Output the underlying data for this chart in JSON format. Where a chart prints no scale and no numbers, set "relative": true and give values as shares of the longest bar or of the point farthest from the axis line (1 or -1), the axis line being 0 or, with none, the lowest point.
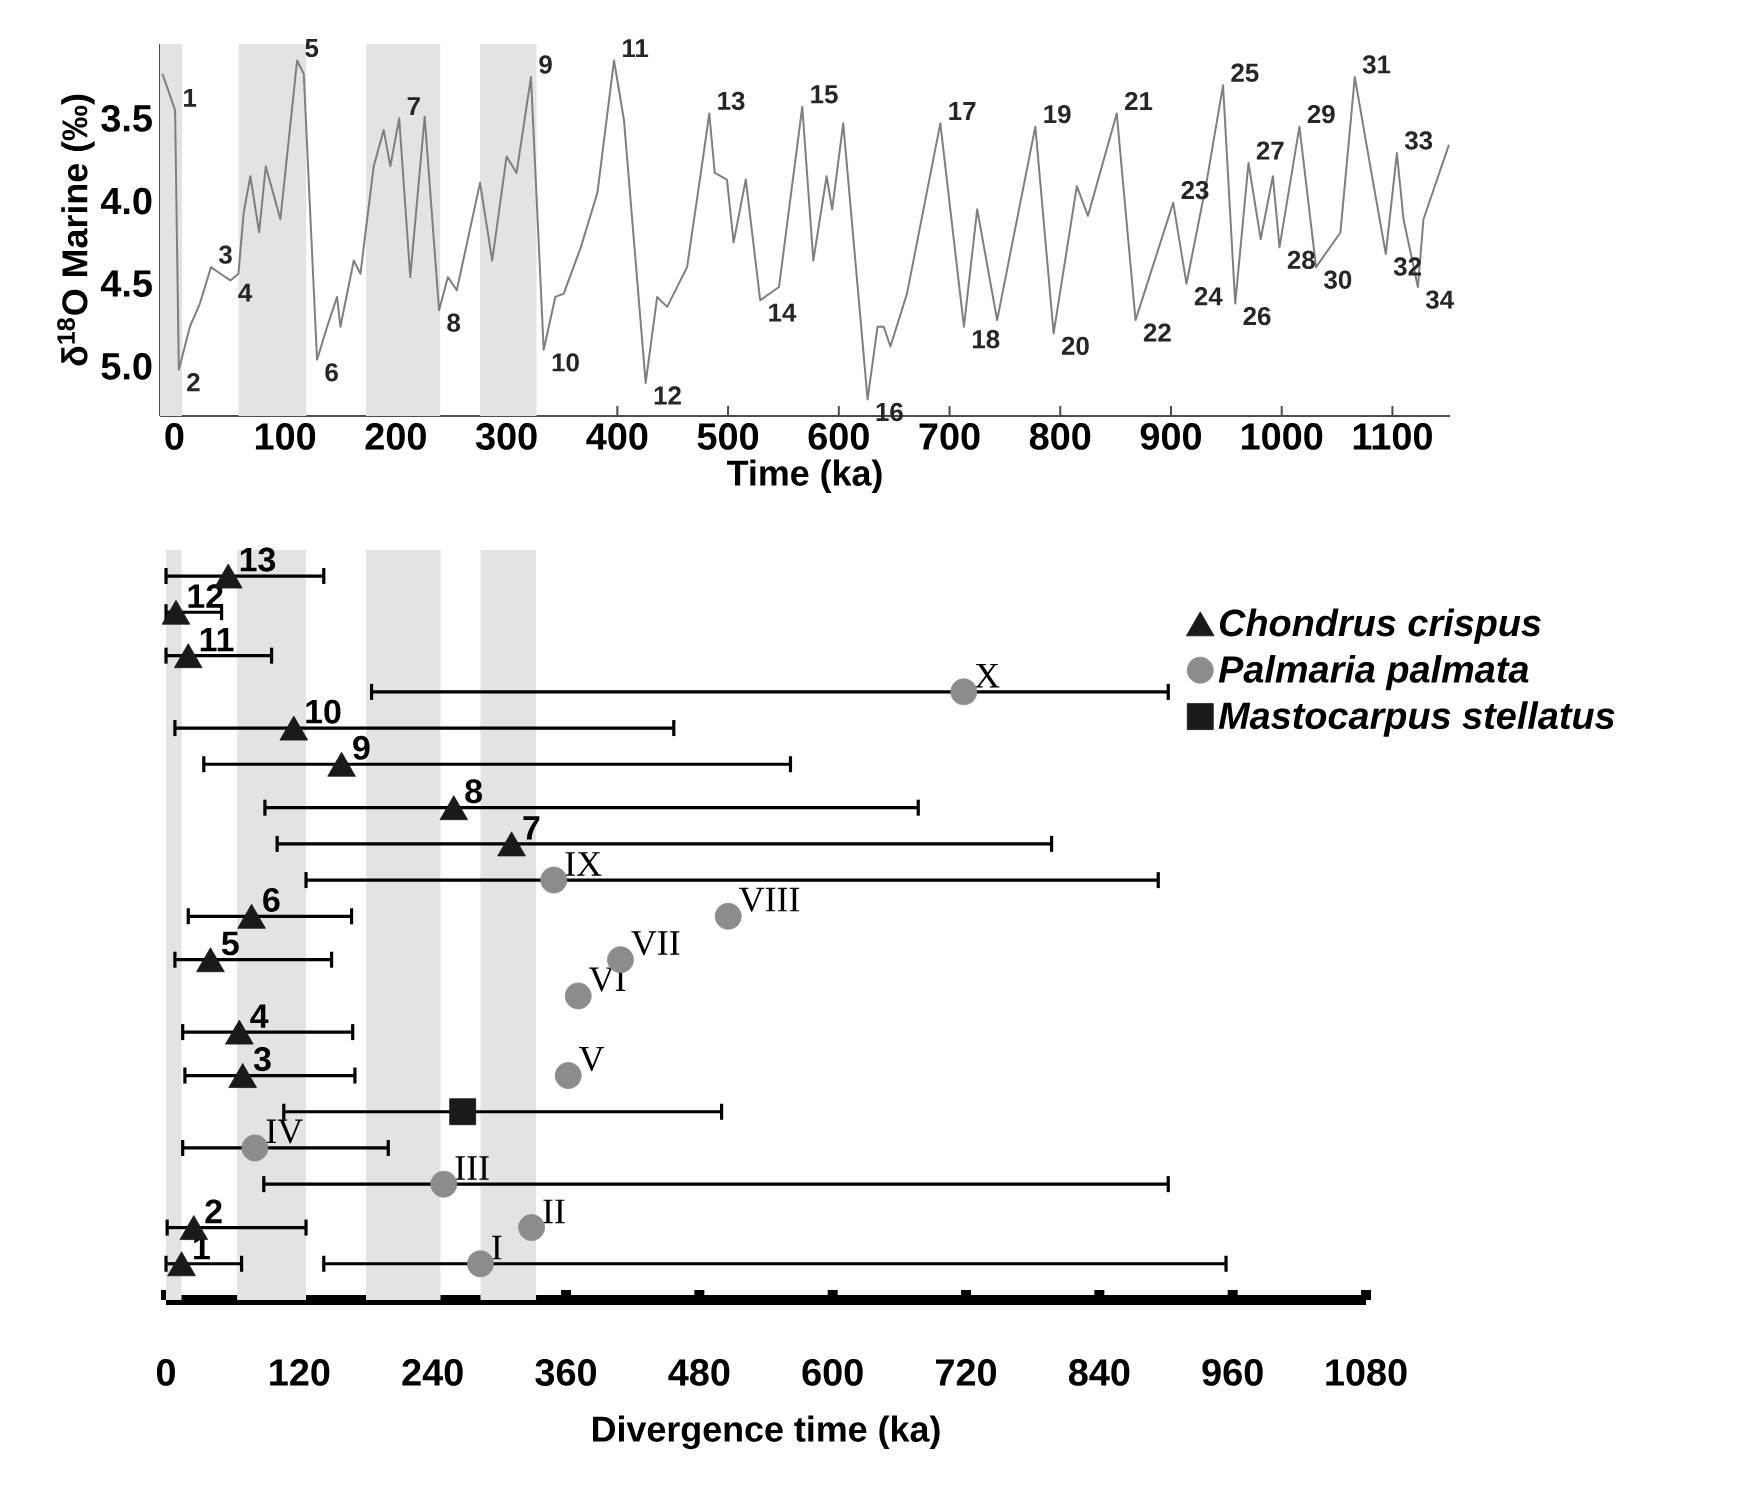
{
  "chart_data": [
    {
      "type": "line",
      "color": "#7f7f7f",
      "x": [
        -10.8,
        0.6,
        4,
        14,
        23,
        33,
        41.5,
        50.6,
        57.8,
        62.6,
        68.6,
        76.5,
        82.5,
        95.7,
        110.8,
        116.8,
        128.8,
        137.9,
        146.9,
        149.9,
        162,
        168,
        180,
        189,
        195,
        203,
        213,
        226,
        239,
        247,
        255,
        276,
        287,
        300,
        309,
        322,
        333.5,
        344,
        351.6,
        367,
        382,
        397,
        406,
        425.6,
        436,
        445,
        463,
        478,
        483,
        488,
        499,
        505,
        516,
        529,
        546,
        567,
        577,
        589,
        594,
        604,
        626,
        635,
        640.6,
        646.6,
        661.6,
        691.7,
        713,
        725,
        743,
        777.5,
        794,
        815,
        825,
        851,
        868,
        902,
        914,
        932,
        947,
        958,
        970,
        981,
        992,
        998,
        1016,
        1022,
        1031,
        1053,
        1066,
        1080,
        1094,
        1104,
        1110,
        1123,
        1128,
        1151
      ],
      "values": [
        3.23,
        3.45,
        5.02,
        4.76,
        4.62,
        4.4,
        4.44,
        4.48,
        4.44,
        4.07,
        3.85,
        4.19,
        3.79,
        4.11,
        3.15,
        3.23,
        4.96,
        4.76,
        4.58,
        4.76,
        4.36,
        4.44,
        3.79,
        3.57,
        3.79,
        3.5,
        4.46,
        3.49,
        4.66,
        4.46,
        4.54,
        3.89,
        4.36,
        3.73,
        3.83,
        3.25,
        4.9,
        4.58,
        4.56,
        4.28,
        3.95,
        3.15,
        3.51,
        5.1,
        4.58,
        4.64,
        4.4,
        3.71,
        3.47,
        3.83,
        3.87,
        4.25,
        3.87,
        4.6,
        4.52,
        3.43,
        4.36,
        3.85,
        4.05,
        3.53,
        5.2,
        4.76,
        4.76,
        4.88,
        4.56,
        3.53,
        4.76,
        4.05,
        4.72,
        3.55,
        4.8,
        3.91,
        4.09,
        3.47,
        4.72,
        4.01,
        4.5,
        3.89,
        3.3,
        4.62,
        3.77,
        4.23,
        3.85,
        4.28,
        3.55,
        3.89,
        4.4,
        4.19,
        3.25,
        3.79,
        4.32,
        3.71,
        4.11,
        4.52,
        4.11,
        3.66
      ],
      "xlim": [
        -13,
        1152
      ],
      "ylim": [
        5.3,
        3.05
      ],
      "xticks": [
        0,
        100,
        200,
        300,
        400,
        500,
        600,
        700,
        800,
        900,
        1000,
        1100
      ],
      "yticks": [
        3.5,
        {
          "value": 4,
          "label": "4.0"
        },
        4.5,
        {
          "value": 5,
          "label": "5.0"
        }
      ],
      "xlabel": "Time (ka)",
      "ylabel": "δ$^{18}$O Marine (‰)",
      "bands": [
        {
          "axis": "x",
          "from": -13,
          "to": 7,
          "color": "#e3e3e3"
        },
        {
          "axis": "x",
          "from": 58,
          "to": 119,
          "color": "#e3e3e3"
        },
        {
          "axis": "x",
          "from": 173,
          "to": 240,
          "color": "#e3e3e3"
        },
        {
          "axis": "x",
          "from": 276,
          "to": 327,
          "color": "#e3e3e3"
        }
      ],
      "annotations": [
        {
          "text": "1",
          "x": 0.6,
          "y": 3.45
        },
        {
          "text": "2",
          "x": 4,
          "y": 5.02
        },
        {
          "text": "3",
          "x": 33,
          "y": 4.4
        },
        {
          "text": "4",
          "x": 50.6,
          "y": 4.48
        },
        {
          "text": "5",
          "x": 110.8,
          "y": 3.15
        },
        {
          "text": "6",
          "x": 128.8,
          "y": 4.96
        },
        {
          "text": "7",
          "x": 203,
          "y": 3.5
        },
        {
          "text": "8",
          "x": 239,
          "y": 4.66
        },
        {
          "text": "9",
          "x": 322,
          "y": 3.25
        },
        {
          "text": "10",
          "x": 333.5,
          "y": 4.9
        },
        {
          "text": "11",
          "x": 397,
          "y": 3.15
        },
        {
          "text": "12",
          "x": 425.6,
          "y": 5.1
        },
        {
          "text": "13",
          "x": 483,
          "y": 3.47
        },
        {
          "text": "14",
          "x": 529,
          "y": 4.6
        },
        {
          "text": "15",
          "x": 567,
          "y": 3.43
        },
        {
          "text": "16",
          "x": 626,
          "y": 5.2
        },
        {
          "text": "17",
          "x": 691.7,
          "y": 3.53
        },
        {
          "text": "18",
          "x": 713,
          "y": 4.76
        },
        {
          "text": "19",
          "x": 777.5,
          "y": 3.55
        },
        {
          "text": "20",
          "x": 794,
          "y": 4.8
        },
        {
          "text": "21",
          "x": 851,
          "y": 3.47
        },
        {
          "text": "22",
          "x": 868,
          "y": 4.72
        },
        {
          "text": "23",
          "x": 902,
          "y": 4.01
        },
        {
          "text": "24",
          "x": 914,
          "y": 4.5
        },
        {
          "text": "25",
          "x": 947,
          "y": 3.3
        },
        {
          "text": "26",
          "x": 958,
          "y": 4.62
        },
        {
          "text": "27",
          "x": 970,
          "y": 3.77
        },
        {
          "text": "28",
          "x": 998,
          "y": 4.28
        },
        {
          "text": "29",
          "x": 1016,
          "y": 3.55
        },
        {
          "text": "30",
          "x": 1031,
          "y": 4.4
        },
        {
          "text": "31",
          "x": 1066,
          "y": 3.25
        },
        {
          "text": "32",
          "x": 1094,
          "y": 4.32
        },
        {
          "text": "33",
          "x": 1104,
          "y": 3.71
        },
        {
          "text": "34",
          "x": 1123,
          "y": 4.52
        }
      ]
    },
    {
      "type": "scatter",
      "relative": true,
      "xlim": [
        0,
        1080
      ],
      "xticks": [
        0,
        120,
        240,
        360,
        480,
        600,
        720,
        840,
        960,
        1080
      ],
      "xlabel": "Divergence time (ka)",
      "legend": "top right",
      "bands": [
        {
          "axis": "x",
          "from": 0,
          "to": 14,
          "color": "#e3e3e3"
        },
        {
          "axis": "x",
          "from": 64,
          "to": 126,
          "color": "#e3e3e3"
        },
        {
          "axis": "x",
          "from": 180,
          "to": 247,
          "color": "#e3e3e3"
        },
        {
          "axis": "x",
          "from": 283,
          "to": 333,
          "color": "#e3e3e3"
        }
      ],
      "series": [
        {
          "name": "*Chondrus crispus*",
          "color": "#1a1a1a",
          "marker": "triangle",
          "x": [
            56,
            9,
            20,
            115,
            158,
            259,
            311,
            77,
            40,
            66,
            69,
            25,
            14
          ],
          "values": [
            1,
            0.95,
            0.89,
            0.79,
            0.74,
            0.68,
            0.63,
            0.53,
            0.47,
            0.37,
            0.31,
            0.1,
            0.05
          ],
          "xerrors": [
            [
              0,
              142
            ],
            [
              0,
              50
            ],
            [
              0,
              95
            ],
            [
              8,
              457
            ],
            [
              34,
              562
            ],
            [
              89,
              677
            ],
            [
              100,
              797
            ],
            [
              20,
              167
            ],
            [
              8,
              149
            ],
            [
              15,
              168
            ],
            [
              17,
              170
            ],
            [
              1,
              126
            ],
            [
              0,
              68
            ]
          ]
        },
        {
          "name": "*Palmaria palmata*",
          "color": "#8c8c8c",
          "marker": "circle",
          "x": [
            718,
            349,
            506,
            409,
            371,
            362,
            80,
            250,
            329,
            283
          ],
          "values": [
            0.84,
            0.58,
            0.53,
            0.47,
            0.42,
            0.31,
            0.21,
            0.16,
            0.1,
            0.05
          ],
          "xerrors": [
            [
              185,
              902
            ],
            [
              126,
              893
            ],
            null,
            null,
            null,
            null,
            [
              15,
              200
            ],
            [
              88,
              902
            ],
            null,
            [
              142,
              954
            ]
          ]
        },
        {
          "name": "*Mastocarpus stellatus*",
          "color": "#1a1a1a",
          "marker": "square",
          "x": [
            267
          ],
          "values": [
            0.26
          ],
          "xerrors": [
            [
              106,
              500
            ]
          ]
        }
      ],
      "annotations": [
        {
          "text": "13",
          "x": 56,
          "y": 1
        },
        {
          "text": "12",
          "x": 9,
          "y": 0.95
        },
        {
          "text": "11",
          "x": 20,
          "y": 0.89
        },
        {
          "text": "10",
          "x": 115,
          "y": 0.79
        },
        {
          "text": "9",
          "x": 158,
          "y": 0.74
        },
        {
          "text": "8",
          "x": 259,
          "y": 0.68
        },
        {
          "text": "7",
          "x": 311,
          "y": 0.63
        },
        {
          "text": "6",
          "x": 77,
          "y": 0.53
        },
        {
          "text": "5",
          "x": 40,
          "y": 0.47
        },
        {
          "text": "4",
          "x": 66,
          "y": 0.37
        },
        {
          "text": "3",
          "x": 69,
          "y": 0.31
        },
        {
          "text": "2",
          "x": 25,
          "y": 0.1
        },
        {
          "text": "1",
          "x": 14,
          "y": 0.05
        },
        {
          "text": "X",
          "x": 718,
          "y": 0.84
        },
        {
          "text": "IX",
          "x": 349,
          "y": 0.58
        },
        {
          "text": "VIII",
          "x": 506,
          "y": 0.53
        },
        {
          "text": "VII",
          "x": 409,
          "y": 0.47
        },
        {
          "text": "VI",
          "x": 371,
          "y": 0.42
        },
        {
          "text": "V",
          "x": 362,
          "y": 0.31
        },
        {
          "text": "IV",
          "x": 80,
          "y": 0.21
        },
        {
          "text": "III",
          "x": 250,
          "y": 0.16
        },
        {
          "text": "II",
          "x": 329,
          "y": 0.1
        },
        {
          "text": "I",
          "x": 283,
          "y": 0.05
        }
      ]
    }
  ]
}
